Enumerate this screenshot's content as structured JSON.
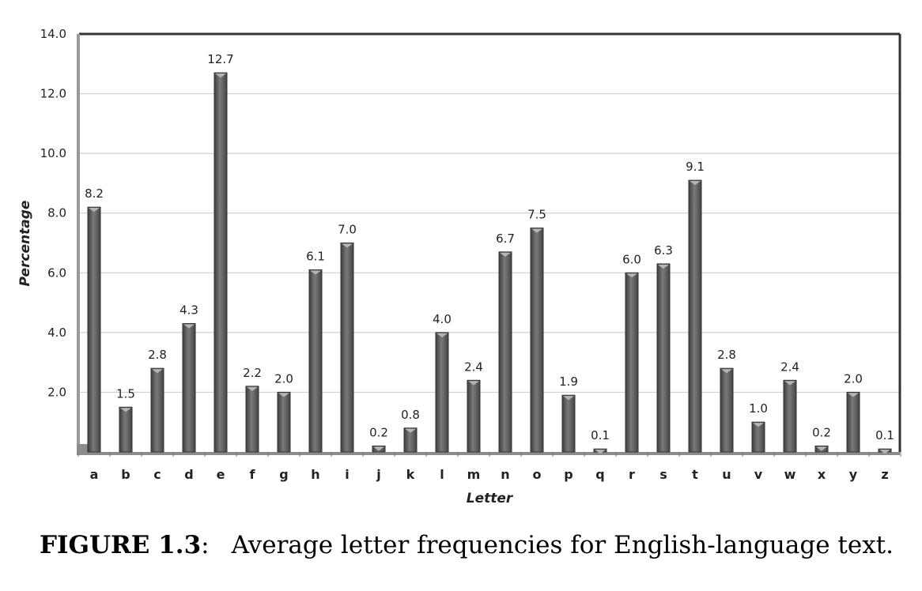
{
  "chart_data": {
    "type": "bar",
    "categories": [
      "a",
      "b",
      "c",
      "d",
      "e",
      "f",
      "g",
      "h",
      "i",
      "j",
      "k",
      "l",
      "m",
      "n",
      "o",
      "p",
      "q",
      "r",
      "s",
      "t",
      "u",
      "v",
      "w",
      "x",
      "y",
      "z"
    ],
    "values": [
      8.2,
      1.5,
      2.8,
      4.3,
      12.7,
      2.2,
      2.0,
      6.1,
      7.0,
      0.2,
      0.8,
      4.0,
      2.4,
      6.7,
      7.5,
      1.9,
      0.1,
      6.0,
      6.3,
      9.1,
      2.8,
      1.0,
      2.4,
      0.2,
      2.0,
      0.1
    ],
    "value_labels": [
      "8.2",
      "1.5",
      "2.8",
      "4.3",
      "12.7",
      "2.2",
      "2.0",
      "6.1",
      "7.0",
      "0.2",
      "0.8",
      "4.0",
      "2.4",
      "6.7",
      "7.5",
      "1.9",
      "0.1",
      "6.0",
      "6.3",
      "9.1",
      "2.8",
      "1.0",
      "2.4",
      "0.2",
      "2.0",
      "0.1"
    ],
    "xlabel": "Letter",
    "ylabel": "Percentage",
    "ylim": [
      0,
      14
    ],
    "yticks": [
      2,
      4,
      6,
      8,
      10,
      12,
      14
    ],
    "ytick_labels": [
      "2.0",
      "4.0",
      "6.0",
      "8.0",
      "10.0",
      "12.0",
      "14.0"
    ],
    "grid": true,
    "bar_color": "#5a5a5a"
  },
  "caption": {
    "label": "FIGURE 1.3",
    "separator": ":",
    "text": "Average letter frequencies for English-language text."
  }
}
